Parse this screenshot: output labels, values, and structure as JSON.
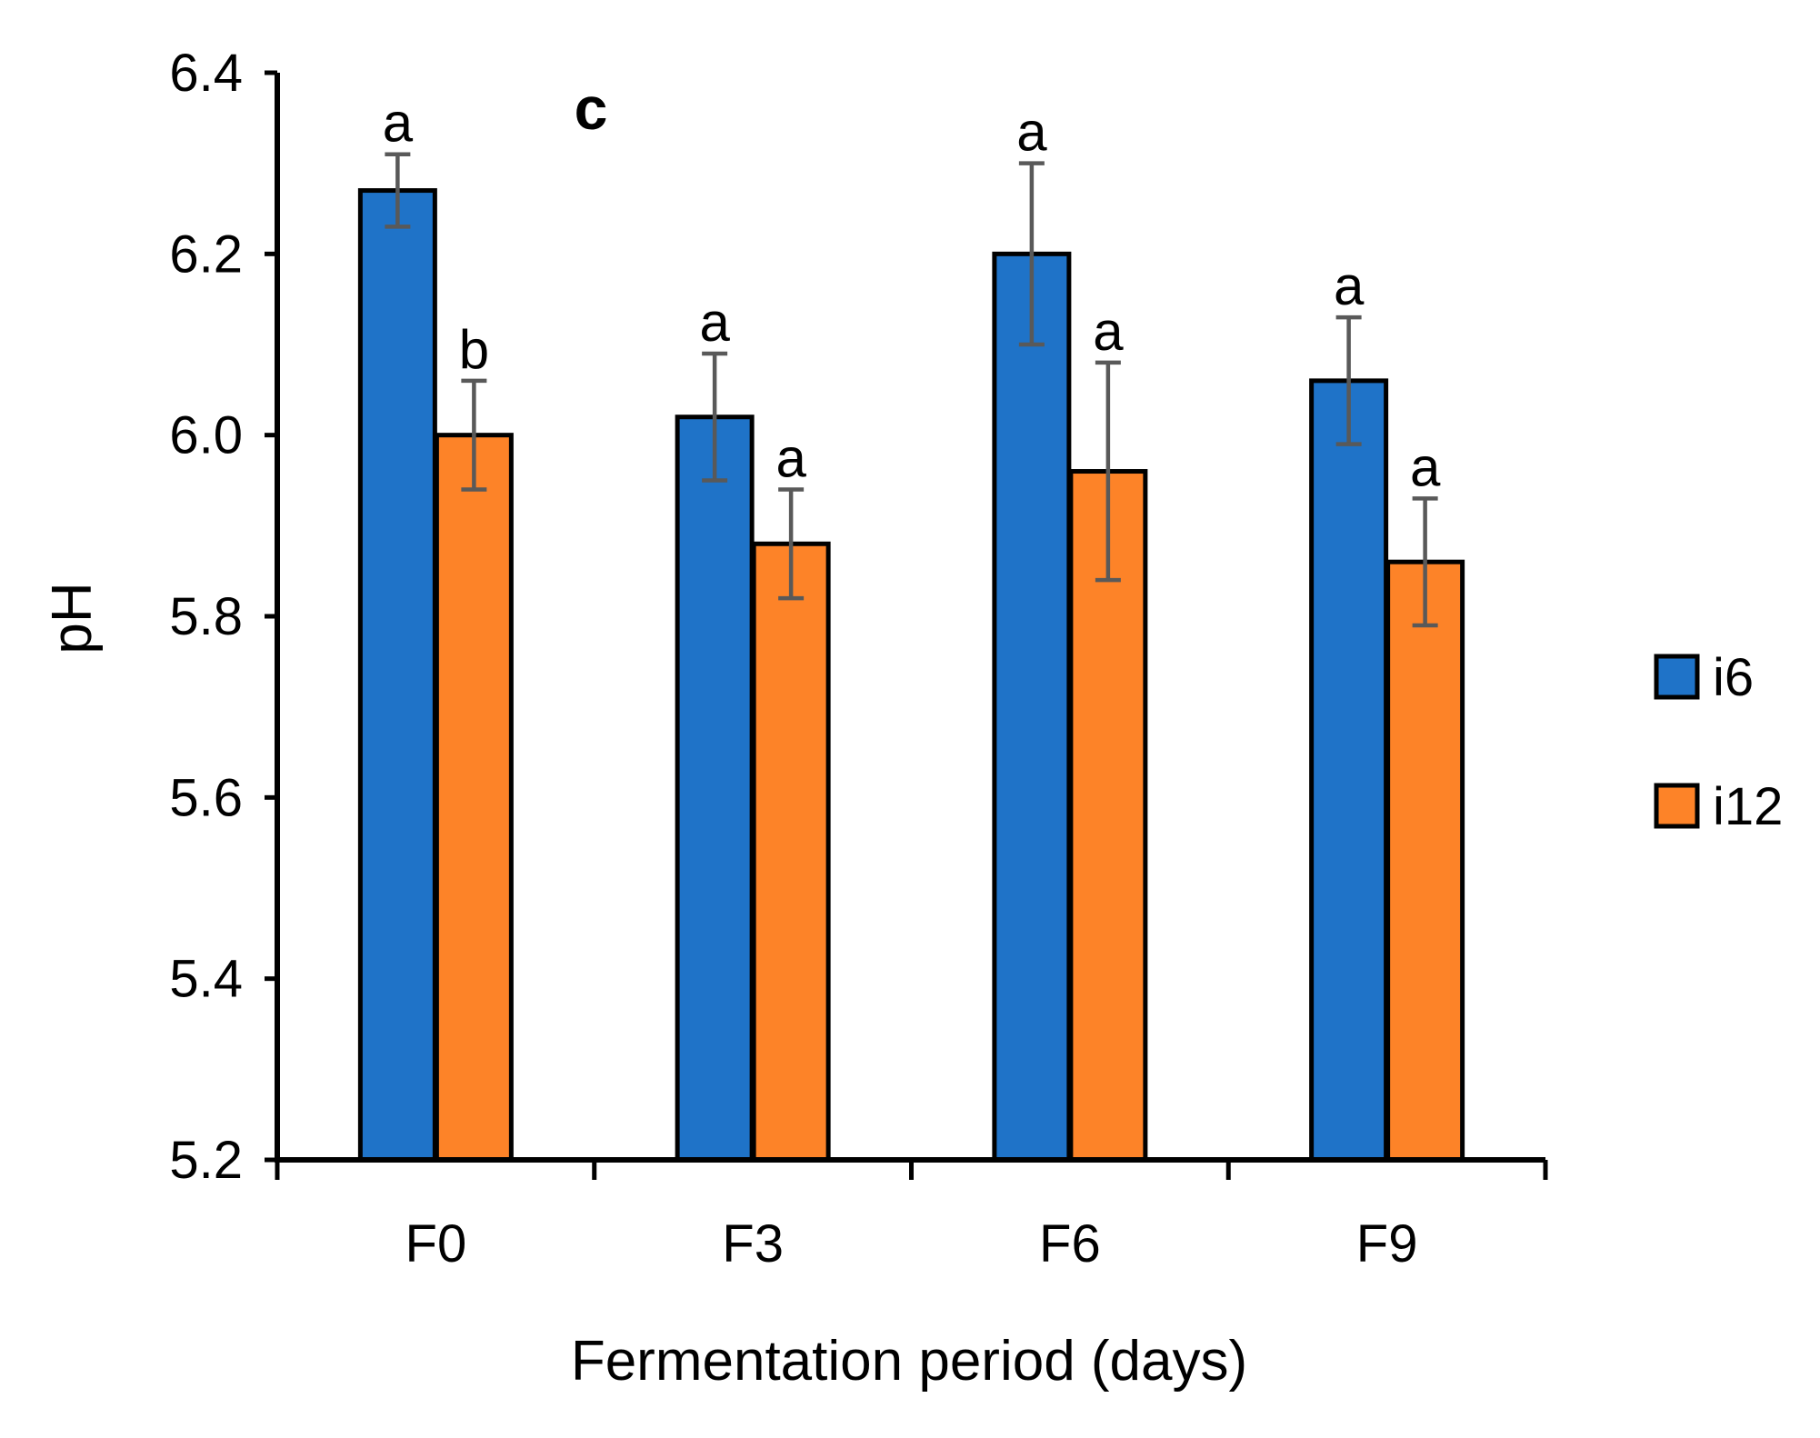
{
  "chart_data": {
    "type": "bar",
    "panel_label": "c",
    "categories": [
      "F0",
      "F3",
      "F6",
      "F9"
    ],
    "xlabel": "Fermentation period (days)",
    "ylabel": "pH",
    "ylim": [
      5.2,
      6.4
    ],
    "yticks": [
      5.2,
      5.4,
      5.6,
      5.8,
      6.0,
      6.2,
      6.4
    ],
    "ytick_labels": [
      "5.2",
      "5.4",
      "5.6",
      "5.8",
      "6.0",
      "6.2",
      "6.4"
    ],
    "grid": false,
    "legend_position": "right",
    "series": [
      {
        "name": "i6",
        "color": "#1f73c8",
        "values": [
          6.27,
          6.02,
          6.2,
          6.06
        ],
        "errors": [
          0.04,
          0.07,
          0.1,
          0.07
        ],
        "labels": [
          "a",
          "a",
          "a",
          "a"
        ]
      },
      {
        "name": "i12",
        "color": "#fd8328",
        "values": [
          6.0,
          5.88,
          5.96,
          5.86
        ],
        "errors": [
          0.06,
          0.06,
          0.12,
          0.07
        ],
        "labels": [
          "b",
          "a",
          "a",
          "a"
        ]
      }
    ]
  }
}
